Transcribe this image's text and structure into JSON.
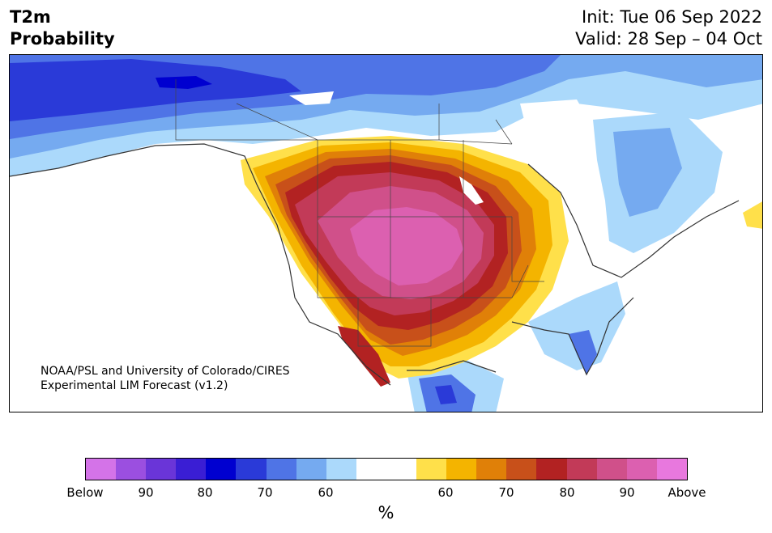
{
  "title_left": [
    "T2m",
    "Probability"
  ],
  "title_right": [
    "Init: Tue 06 Sep 2022",
    "Valid: 28 Sep – 04 Oct"
  ],
  "credit": [
    "NOAA/PSL and University of Colorado/CIRES",
    "Experimental LIM Forecast (v1.2)"
  ],
  "colorbar": {
    "colors": [
      "#d473e8",
      "#9b4fe0",
      "#6a35d8",
      "#3a1ed4",
      "#0000d0",
      "#2a3ad8",
      "#4f74e6",
      "#75aaf0",
      "#abd9fb",
      "#ffffff",
      "#ffffff",
      "#ffe04a",
      "#f4b400",
      "#e08008",
      "#c8501a",
      "#b22222",
      "#c23a58",
      "#d0508a",
      "#dc60b0",
      "#e878de"
    ],
    "tick_labels": [
      "Below",
      "90",
      "80",
      "70",
      "60",
      "60",
      "70",
      "80",
      "90",
      "Above"
    ],
    "unit": "%"
  },
  "legend_colors": {
    "below_far": "#2a3ad8",
    "below_med": "#4f74e6",
    "below_light": "#75aaf0",
    "below_faint": "#abd9fb",
    "above_60": "#ffe04a",
    "above_65": "#f4b400",
    "above_70": "#e08008",
    "above_75": "#c8501a",
    "above_80": "#b22222",
    "above_85": "#c23a58",
    "above_90": "#d0508a",
    "above_95": "#dc60b0"
  }
}
